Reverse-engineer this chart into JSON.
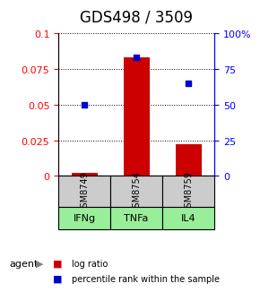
{
  "title": "GDS498 / 3509",
  "categories": [
    "GSM8749",
    "GSM8754",
    "GSM8759"
  ],
  "agents": [
    "IFNg",
    "TNFa",
    "IL4"
  ],
  "log_ratios": [
    0.002,
    0.083,
    0.022
  ],
  "percentile_ranks": [
    50,
    83,
    65
  ],
  "ylim_left": [
    0,
    0.1
  ],
  "ylim_right": [
    0,
    100
  ],
  "yticks_left": [
    0,
    0.025,
    0.05,
    0.075,
    0.1
  ],
  "yticks_right": [
    0,
    25,
    50,
    75,
    100
  ],
  "ytick_left_labels": [
    "0",
    "0.025",
    "0.05",
    "0.075",
    "0.1"
  ],
  "ytick_right_labels": [
    "0",
    "25",
    "50",
    "75",
    "100%"
  ],
  "bar_color": "#cc0000",
  "dot_color": "#0000cc",
  "gray_bg": "#cccccc",
  "green_bg": "#99ee99",
  "legend_bar_label": "log ratio",
  "legend_dot_label": "percentile rank within the sample",
  "agent_label": "agent",
  "title_fontsize": 12,
  "tick_fontsize": 8,
  "label_fontsize": 8,
  "agent_arrow": "▶"
}
